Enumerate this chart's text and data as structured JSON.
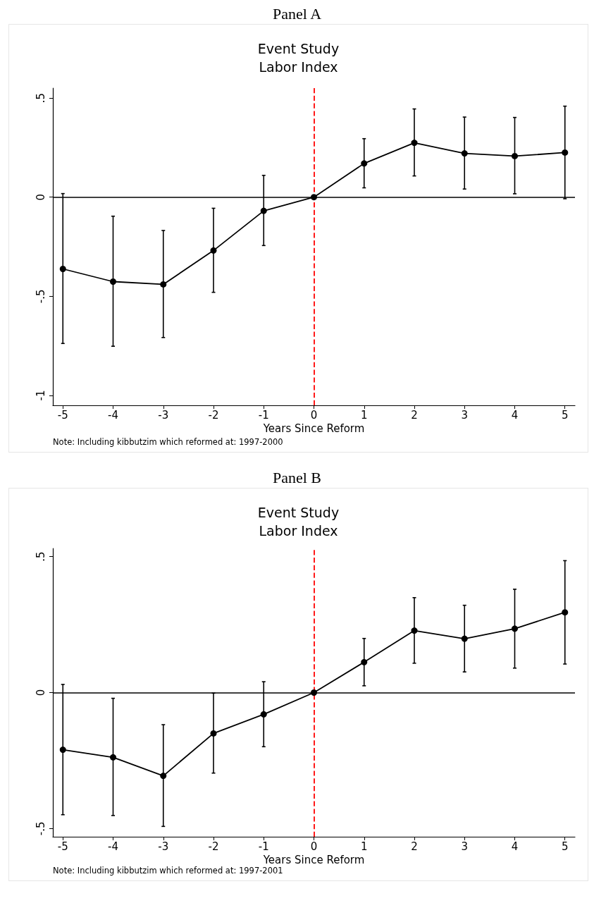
{
  "chart_data": [
    {
      "type": "line",
      "title": "Panel A",
      "subtitle": "Event Study\nLabor Index",
      "xlabel": "Years Since Reform",
      "annotations": [
        "Note: Including kibbutzim which reformed at: 1997-2000"
      ],
      "x": [
        -5,
        -4,
        -3,
        -2,
        -1,
        0,
        1,
        2,
        3,
        4,
        5
      ],
      "series": [
        {
          "color": "#000000",
          "values": [
            -0.362,
            -0.426,
            -0.44,
            -0.269,
            -0.069,
            0,
            0.17,
            0.274,
            0.221,
            0.207,
            0.225
          ],
          "errors": [
            [
              -0.738,
              0.018
            ],
            [
              -0.752,
              -0.096
            ],
            [
              -0.708,
              -0.168
            ],
            [
              -0.48,
              -0.056
            ],
            [
              -0.244,
              0.11
            ],
            null,
            [
              0.047,
              0.295
            ],
            [
              0.107,
              0.445
            ],
            [
              0.041,
              0.404
            ],
            [
              0.017,
              0.402
            ],
            [
              -0.008,
              0.459
            ]
          ]
        }
      ],
      "xlim": [
        -5.2,
        5.2
      ],
      "xticks": [
        -5,
        -4,
        -3,
        -2,
        -1,
        0,
        1,
        2,
        3,
        4,
        5
      ],
      "ylim": [
        -1.05,
        0.55
      ],
      "yticks": [
        {
          "value": -1,
          "label": "-1"
        },
        {
          "value": -0.5,
          "label": "-.5"
        },
        0,
        {
          "value": 0.5,
          "label": ".5"
        }
      ],
      "ref_lines": [
        {
          "axis": "y",
          "value": 0,
          "color": "#000000",
          "line_style": "solid"
        },
        {
          "axis": "x",
          "value": 0,
          "color": "#ff0000",
          "line_style": "dashed"
        }
      ],
      "marker": "circle",
      "line_style": "solid",
      "grid": false
    },
    {
      "type": "line",
      "title": "Panel B",
      "subtitle": "Event Study\nLabor Index",
      "xlabel": "Years Since Reform",
      "annotations": [
        "Note: Including kibbutzim which reformed at: 1997-2001"
      ],
      "x": [
        -5,
        -4,
        -3,
        -2,
        -1,
        0,
        1,
        2,
        3,
        4,
        5
      ],
      "series": [
        {
          "color": "#000000",
          "values": [
            -0.21,
            -0.238,
            -0.306,
            -0.15,
            -0.08,
            0,
            0.112,
            0.228,
            0.198,
            0.235,
            0.295
          ],
          "errors": [
            [
              -0.449,
              0.03
            ],
            [
              -0.452,
              -0.021
            ],
            [
              -0.492,
              -0.118
            ],
            [
              -0.296,
              -0.002
            ],
            [
              -0.199,
              0.04
            ],
            null,
            [
              0.025,
              0.199
            ],
            [
              0.108,
              0.349
            ],
            [
              0.076,
              0.321
            ],
            [
              0.09,
              0.38
            ],
            [
              0.105,
              0.485
            ]
          ]
        }
      ],
      "xlim": [
        -5.2,
        5.2
      ],
      "xticks": [
        -5,
        -4,
        -3,
        -2,
        -1,
        0,
        1,
        2,
        3,
        4,
        5
      ],
      "ylim": [
        -0.53,
        0.53
      ],
      "yticks": [
        {
          "value": -0.5,
          "label": "-.5"
        },
        0,
        {
          "value": 0.5,
          "label": ".5"
        }
      ],
      "ref_lines": [
        {
          "axis": "y",
          "value": 0,
          "color": "#000000",
          "line_style": "solid"
        },
        {
          "axis": "x",
          "value": 0,
          "color": "#ff0000",
          "line_style": "dashed"
        }
      ],
      "marker": "circle",
      "line_style": "solid",
      "grid": false
    }
  ]
}
